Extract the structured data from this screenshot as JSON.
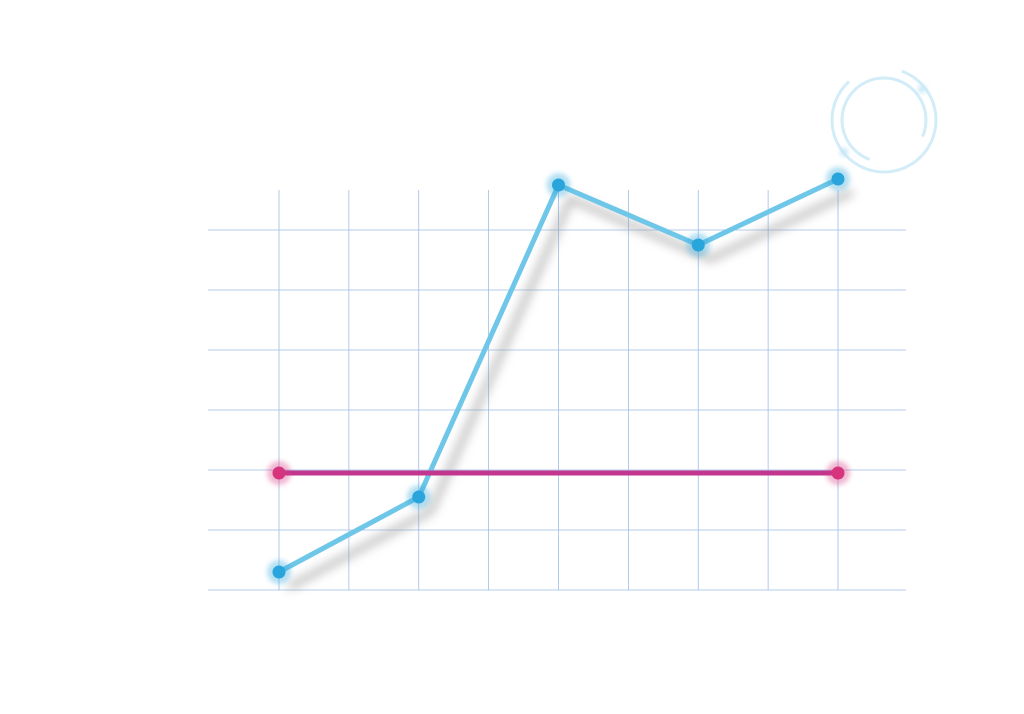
{
  "chart_data": {
    "type": "line",
    "title": "",
    "xlabel": "",
    "ylabel": "",
    "x": [
      0,
      2,
      4,
      6,
      8
    ],
    "xlim": [
      0,
      8
    ],
    "ylim": [
      0,
      7
    ],
    "grid": true,
    "x_gridlines": [
      0,
      1,
      2,
      3,
      4,
      5,
      6,
      7,
      8
    ],
    "y_gridlines": [
      0,
      1,
      2,
      3,
      4,
      5,
      6,
      7
    ],
    "series": [
      {
        "color": "#6ec6e8",
        "marker_color": "#2aa5dc",
        "points": [
          {
            "x": 0,
            "y": 0.3
          },
          {
            "x": 2,
            "y": 1.55
          },
          {
            "x": 4,
            "y": 6.75
          },
          {
            "x": 6,
            "y": 5.75
          },
          {
            "x": 8,
            "y": 6.85
          }
        ]
      },
      {
        "color": "#c2368f",
        "marker_color": "#d6357e",
        "points": [
          {
            "x": 0,
            "y": 1.95
          },
          {
            "x": 8,
            "y": 1.95
          }
        ]
      }
    ]
  },
  "decor": {
    "icon": "refresh-icon",
    "gridline_color": "#9dbde6"
  }
}
